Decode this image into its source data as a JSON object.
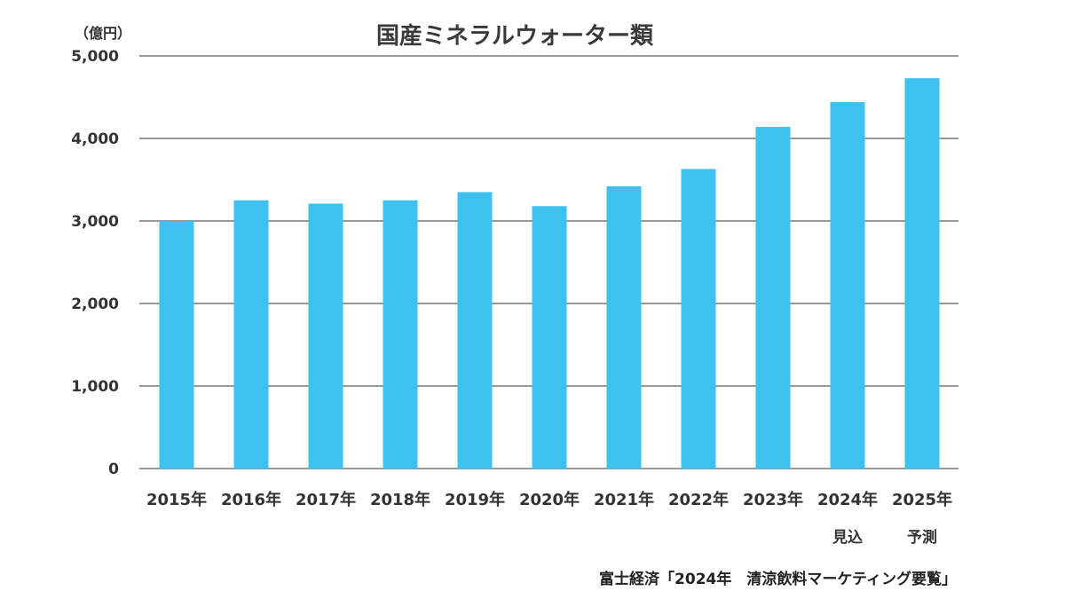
{
  "chart_data": {
    "type": "bar",
    "title": "国産ミネラルウォーター類",
    "unit_label": "（億円）",
    "categories": [
      "2015年",
      "2016年",
      "2017年",
      "2018年",
      "2019年",
      "2020年",
      "2021年",
      "2022年",
      "2023年",
      "2024年",
      "2025年"
    ],
    "sublabels": [
      "",
      "",
      "",
      "",
      "",
      "",
      "",
      "",
      "",
      "見込",
      "予測"
    ],
    "values": [
      3000,
      3250,
      3210,
      3250,
      3350,
      3180,
      3420,
      3630,
      4140,
      4440,
      4730
    ],
    "ylim": [
      0,
      5000
    ],
    "yticks": [
      0,
      1000,
      2000,
      3000,
      4000,
      5000
    ],
    "ytick_labels": [
      "0",
      "1,000",
      "2,000",
      "3,000",
      "4,000",
      "5,000"
    ],
    "grid": true,
    "bar_color": "#3fc1ef",
    "gridline_color": "#333333"
  },
  "source": "富士経済「2024年　清涼飲料マーケティング要覧」"
}
